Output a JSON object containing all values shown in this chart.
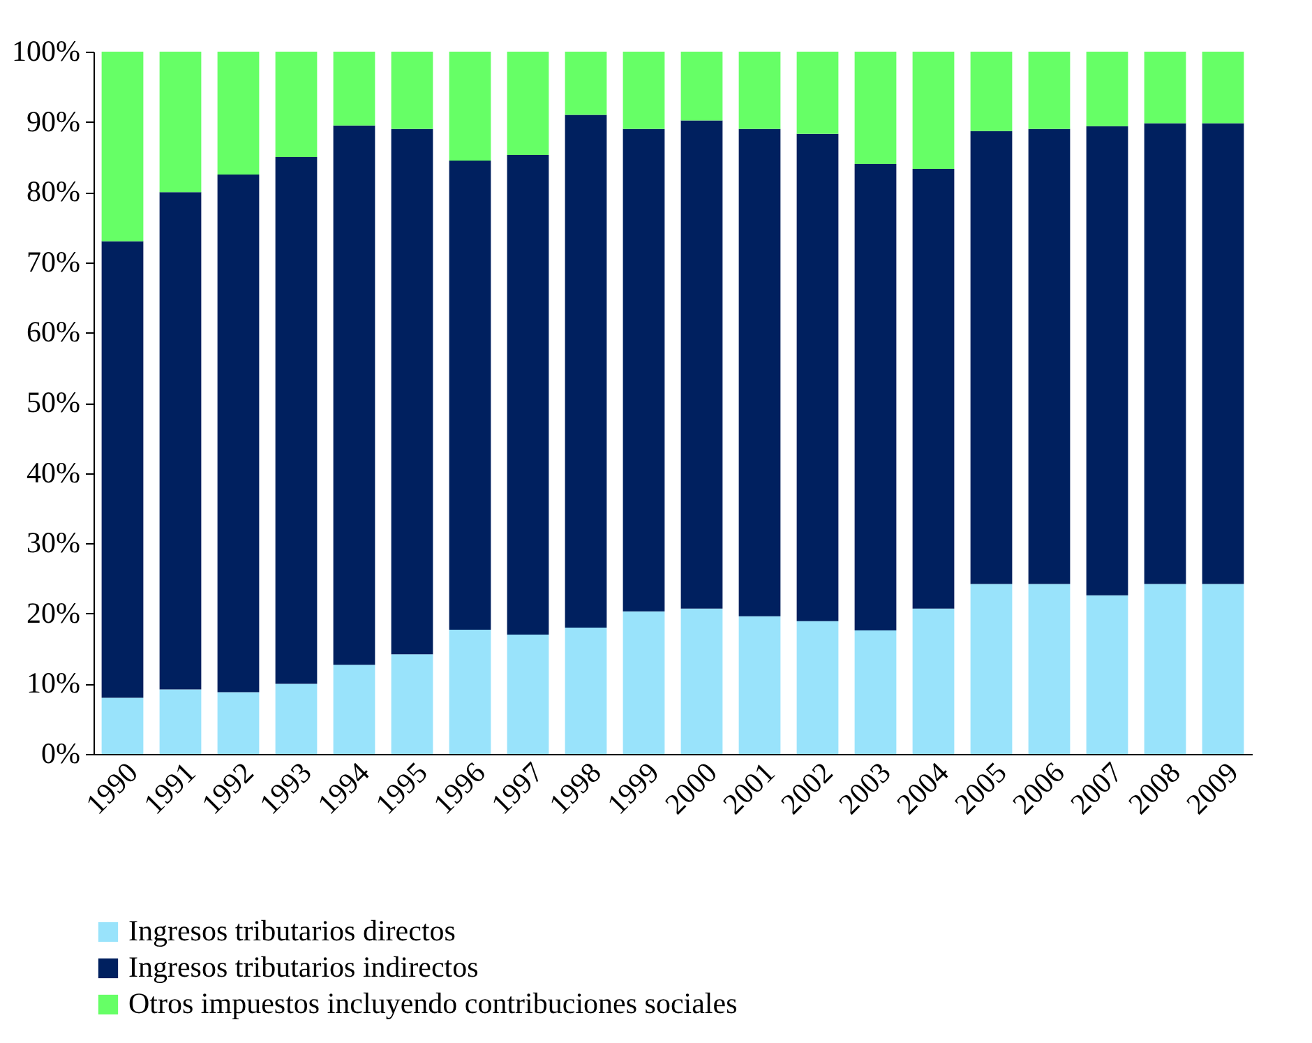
{
  "chart_data": {
    "type": "bar",
    "stacked": true,
    "legend": "bottom",
    "grid": false,
    "categories": [
      "1990",
      "1991",
      "1992",
      "1993",
      "1994",
      "1995",
      "1996",
      "1997",
      "1998",
      "1999",
      "2000",
      "2001",
      "2002",
      "2003",
      "2004",
      "2005",
      "2006",
      "2007",
      "2008",
      "2009"
    ],
    "ylim": [
      0,
      100
    ],
    "yticks": [
      {
        "value": 0,
        "label": "0%"
      },
      {
        "value": 10,
        "label": "10%"
      },
      {
        "value": 20,
        "label": "20%"
      },
      {
        "value": 30,
        "label": "30%"
      },
      {
        "value": 40,
        "label": "40%"
      },
      {
        "value": 50,
        "label": "50%"
      },
      {
        "value": 60,
        "label": "60%"
      },
      {
        "value": 70,
        "label": "70%"
      },
      {
        "value": 80,
        "label": "80%"
      },
      {
        "value": 90,
        "label": "90%"
      },
      {
        "value": 100,
        "label": "100%"
      }
    ],
    "series": [
      {
        "name": "Ingresos tributarios directos",
        "color": "#99e3fb",
        "values": [
          8,
          9.2,
          8.8,
          10,
          12.7,
          14.2,
          17.7,
          17,
          18,
          20.3,
          20.7,
          19.6,
          18.9,
          17.6,
          20.7,
          24.2,
          24.2,
          22.6,
          24.2,
          24.2
        ]
      },
      {
        "name": "Ingresos tributarios indirectos",
        "color": "#00205f",
        "values": [
          65,
          70.8,
          73.7,
          75,
          76.8,
          74.8,
          66.8,
          68.3,
          73,
          68.7,
          69.5,
          69.4,
          69.4,
          66.4,
          62.6,
          64.5,
          64.8,
          66.8,
          65.6,
          65.6
        ]
      },
      {
        "name": "Otros impuestos incluyendo contribuciones sociales",
        "color": "#66ff66",
        "values": [
          27,
          20,
          17.5,
          15,
          10.5,
          11,
          15.5,
          14.7,
          9,
          11,
          9.8,
          11,
          11.7,
          16,
          16.7,
          11.3,
          11,
          10.6,
          10.2,
          10.2
        ]
      }
    ]
  }
}
